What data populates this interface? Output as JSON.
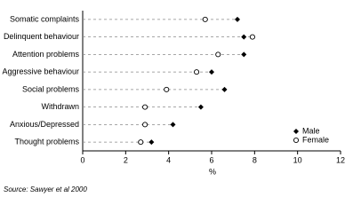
{
  "chart_data": {
    "type": "dot",
    "categories": [
      "Somatic complaints",
      "Delinquent behaviour",
      "Attention problems",
      "Aggressive behaviour",
      "Social problems",
      "Withdrawn",
      "Anxious/Depressed",
      "Thought problems"
    ],
    "series": [
      {
        "name": "Male",
        "color": "#000000",
        "marker": "filled",
        "values": [
          7.2,
          7.5,
          7.5,
          6.0,
          6.6,
          5.5,
          4.2,
          3.2
        ]
      },
      {
        "name": "Female",
        "color": "#000000",
        "marker": "open",
        "values": [
          5.7,
          7.9,
          6.3,
          5.3,
          3.9,
          2.9,
          2.9,
          2.7
        ]
      }
    ],
    "xlim": [
      0,
      12
    ],
    "xticks": [
      0,
      2,
      4,
      6,
      8,
      10,
      12
    ],
    "xlabel": "%",
    "legend": "lower right",
    "source": "Source: Sawyer et al 2000"
  }
}
